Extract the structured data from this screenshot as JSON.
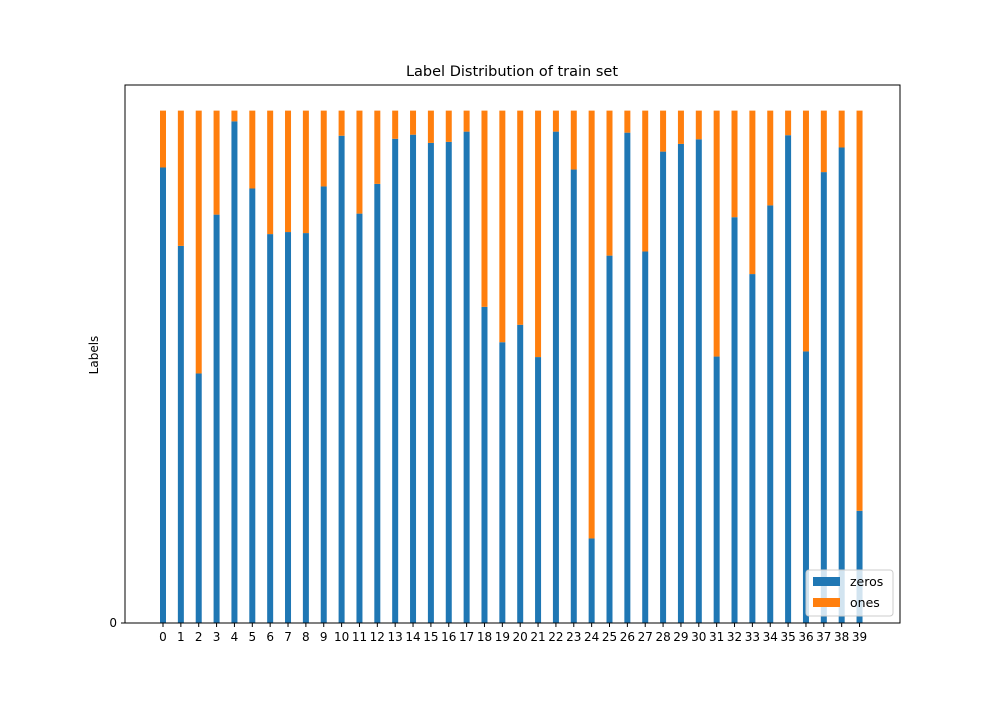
{
  "chart_data": {
    "type": "bar",
    "stacked": true,
    "title": "Label Distribution of train set",
    "xlabel": "",
    "ylabel": "Labels",
    "ytick_labels": [
      "0"
    ],
    "categories": [
      "0",
      "1",
      "2",
      "3",
      "4",
      "5",
      "6",
      "7",
      "8",
      "9",
      "10",
      "11",
      "12",
      "13",
      "14",
      "15",
      "16",
      "17",
      "18",
      "19",
      "20",
      "21",
      "22",
      "23",
      "24",
      "25",
      "26",
      "27",
      "28",
      "29",
      "30",
      "31",
      "32",
      "33",
      "34",
      "35",
      "36",
      "37",
      "38",
      "39"
    ],
    "series": [
      {
        "name": "zeros",
        "color": "#1f77b4",
        "values": [
          0.889,
          0.736,
          0.487,
          0.797,
          0.979,
          0.848,
          0.759,
          0.763,
          0.761,
          0.852,
          0.951,
          0.799,
          0.857,
          0.945,
          0.953,
          0.937,
          0.939,
          0.959,
          0.617,
          0.548,
          0.582,
          0.519,
          0.959,
          0.885,
          0.165,
          0.717,
          0.957,
          0.725,
          0.92,
          0.935,
          0.944,
          0.52,
          0.792,
          0.681,
          0.815,
          0.952,
          0.53,
          0.88,
          0.928,
          0.219
        ]
      },
      {
        "name": "ones",
        "color": "#ff7f0e",
        "values": [
          0.111,
          0.264,
          0.513,
          0.203,
          0.021,
          0.152,
          0.241,
          0.237,
          0.239,
          0.148,
          0.049,
          0.201,
          0.143,
          0.055,
          0.047,
          0.063,
          0.061,
          0.041,
          0.383,
          0.452,
          0.418,
          0.481,
          0.041,
          0.115,
          0.835,
          0.283,
          0.043,
          0.275,
          0.08,
          0.065,
          0.056,
          0.48,
          0.208,
          0.319,
          0.185,
          0.048,
          0.47,
          0.12,
          0.072,
          0.781
        ]
      }
    ],
    "ylim": [
      0,
      1.05
    ],
    "grid": false,
    "legend_placement": "bottom-right"
  }
}
